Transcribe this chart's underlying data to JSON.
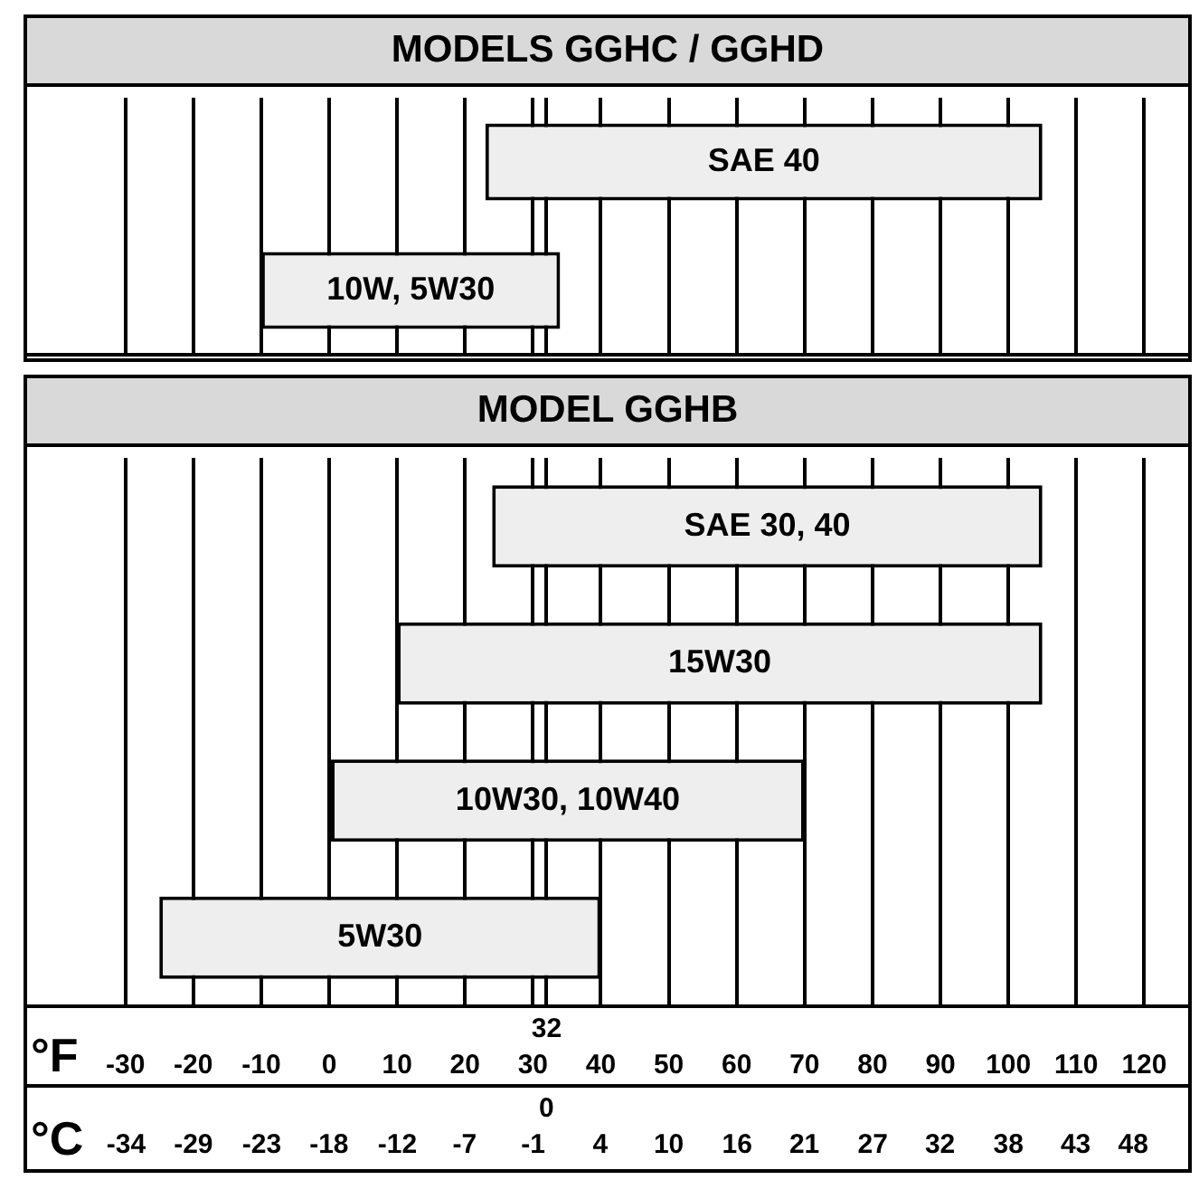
{
  "chart_data": [
    {
      "type": "bar",
      "title": "MODELS GGHC / GGHD",
      "orientation": "horizontal",
      "categories": [
        "SAE 40",
        "10W, 5W30"
      ],
      "base": [
        23,
        -10
      ],
      "values": [
        82,
        44
      ],
      "color": "#eeeeee",
      "xlim": [
        -45,
        127
      ],
      "xticks": [
        -30,
        -20,
        -10,
        0,
        10,
        20,
        30,
        32,
        40,
        50,
        60,
        70,
        80,
        90,
        100,
        110,
        120
      ],
      "grid": "x",
      "legend": false,
      "tick_labels": "y"
    },
    {
      "type": "bar",
      "title": "MODEL GGHB",
      "orientation": "horizontal",
      "categories": [
        "SAE 30, 40",
        "15W30",
        "10W30, 10W40",
        "5W30"
      ],
      "base": [
        24,
        10,
        0,
        -25
      ],
      "values": [
        81,
        95,
        70,
        65
      ],
      "color": "#eeeeee",
      "xlim": [
        -45,
        127
      ],
      "xticks": [
        -30,
        -20,
        -10,
        0,
        10,
        20,
        30,
        {
          "value": 32,
          "label": null
        },
        40,
        50,
        60,
        70,
        80,
        90,
        100,
        110,
        120
      ],
      "annotations": [
        "32",
        "0"
      ],
      "xlabel": "°F",
      "x2label": "°C",
      "x2lim": [
        -42.8,
        52.8
      ],
      "x2ticks": [
        {
          "value": -34.4,
          "label": "-34"
        },
        {
          "value": -28.9,
          "label": "-29"
        },
        {
          "value": -23.3,
          "label": "-23"
        },
        {
          "value": -17.8,
          "label": "-18"
        },
        {
          "value": -12.2,
          "label": "-12"
        },
        {
          "value": -6.7,
          "label": "-7"
        },
        {
          "value": -1.1,
          "label": "-1"
        },
        {
          "value": 0,
          "label": null
        },
        {
          "value": 4.4,
          "label": "4"
        },
        10,
        {
          "value": 15.6,
          "label": "16"
        },
        {
          "value": 21.1,
          "label": "21"
        },
        {
          "value": 26.7,
          "label": "27"
        },
        {
          "value": 32.2,
          "label": "32"
        },
        {
          "value": 37.8,
          "label": "38"
        },
        {
          "value": 43.3,
          "label": "43"
        },
        48
      ],
      "grid": "x",
      "legend": false
    }
  ]
}
